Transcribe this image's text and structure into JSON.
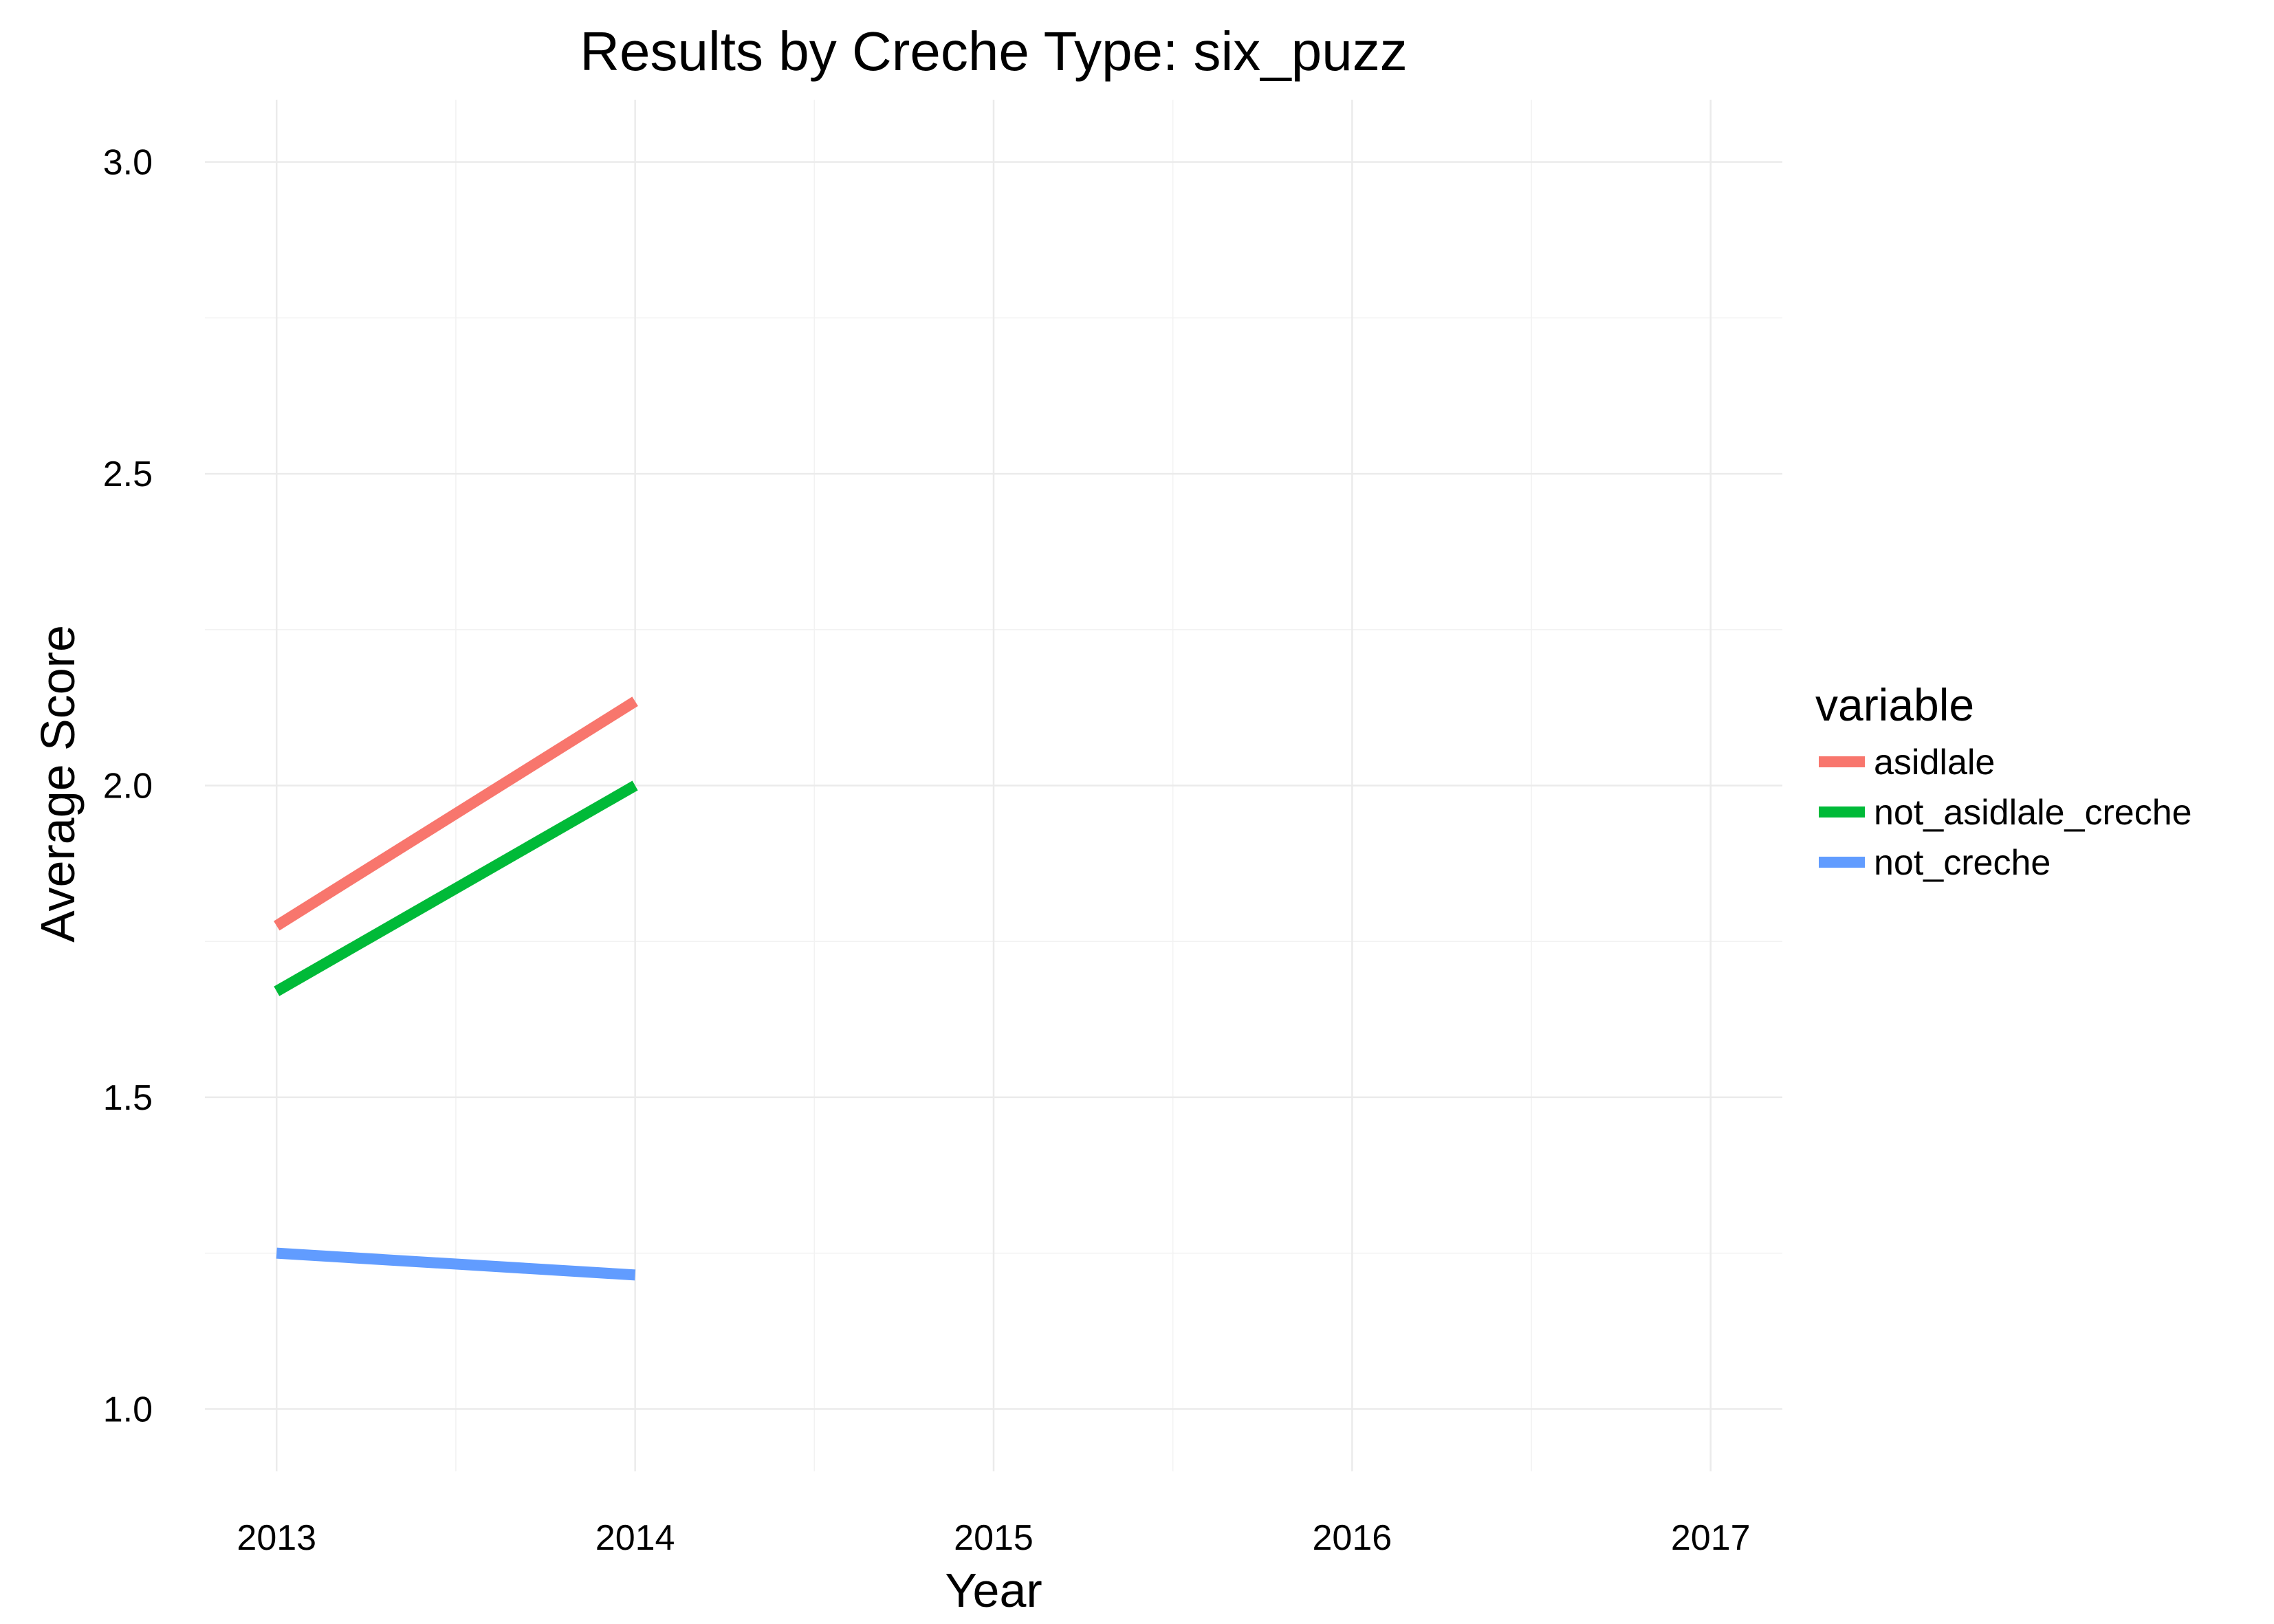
{
  "chart_data": {
    "type": "line",
    "title": "Results by Creche Type: six_puzz",
    "xlabel": "Year",
    "ylabel": "Average Score",
    "x": [
      2013,
      2014
    ],
    "xticks": [
      "2013",
      "2014",
      "2015",
      "2016",
      "2017"
    ],
    "xlim": [
      2012.8,
      2017.2
    ],
    "yticks": [
      "1.0",
      "1.5",
      "2.0",
      "2.5",
      "3.0"
    ],
    "ylim": [
      0.9,
      3.1
    ],
    "grid": true,
    "legend": {
      "title": "variable",
      "position": "right"
    },
    "series": [
      {
        "name": "asidlale",
        "color": "#F8766D",
        "values": [
          1.775,
          2.135
        ]
      },
      {
        "name": "not_asidlale_creche",
        "color": "#00BA38",
        "values": [
          1.67,
          2.0
        ]
      },
      {
        "name": "not_creche",
        "color": "#619CFF",
        "values": [
          1.25,
          1.215
        ]
      }
    ]
  }
}
